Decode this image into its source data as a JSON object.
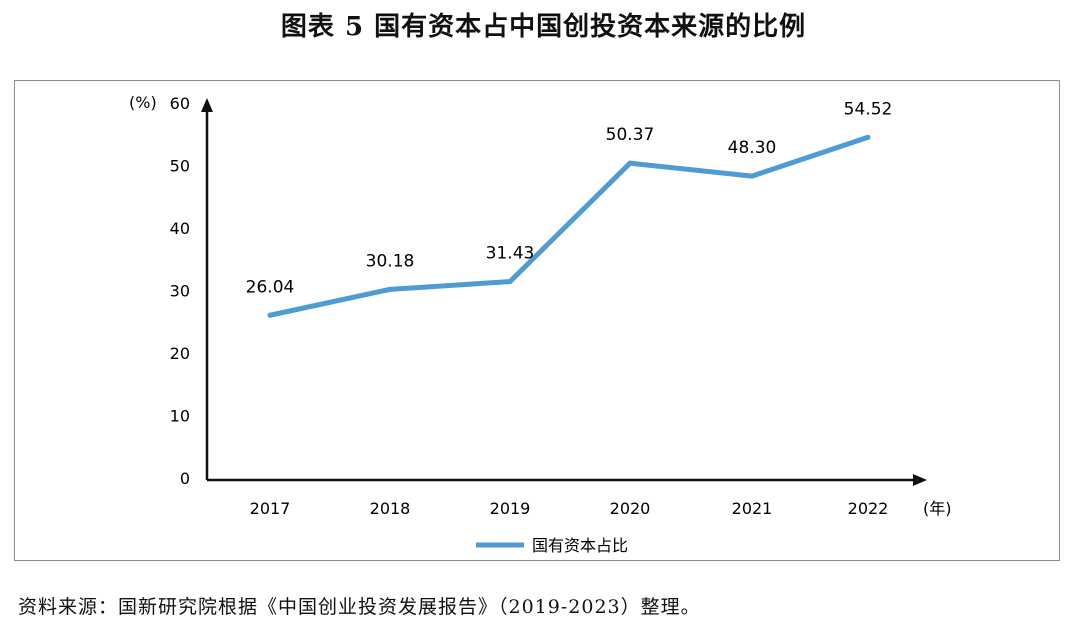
{
  "title": "图表 5  国有资本占中国创投资本来源的比例",
  "source_note": "资料来源：国新研究院根据《中国创业投资发展报告》（2019-2023）整理。",
  "chart_data": {
    "type": "line",
    "title": "图表 5  国有资本占中国创投资本来源的比例",
    "x": [
      "2017",
      "2018",
      "2019",
      "2020",
      "2021",
      "2022"
    ],
    "series": [
      {
        "name": "国有资本占比",
        "values": [
          26.04,
          30.18,
          31.43,
          50.37,
          48.3,
          54.52
        ],
        "labels": [
          "26.04",
          "30.18",
          "31.43",
          "50.37",
          "48.30",
          "54.52"
        ]
      }
    ],
    "y_unit_label": "(%)",
    "x_unit_label": "(年)",
    "ylim": [
      0,
      60
    ],
    "y_ticks": [
      "0",
      "10",
      "20",
      "30",
      "40",
      "50",
      "60"
    ],
    "grid": false,
    "legend_position": "bottom-center",
    "line_color": "#4f9bd3"
  }
}
